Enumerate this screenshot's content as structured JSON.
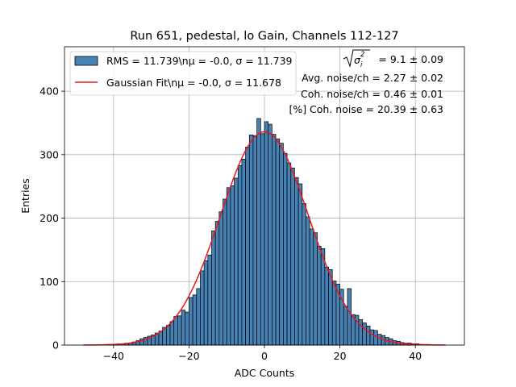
{
  "chart_data": {
    "type": "bar",
    "title": "Run 651, pedestal, lo Gain, Channels 112-127",
    "xlabel": "ADC Counts",
    "ylabel": "Entries",
    "xlim": [
      -53,
      53
    ],
    "ylim": [
      0,
      470
    ],
    "grid": true,
    "xticks": [
      -40,
      -20,
      0,
      20,
      40
    ],
    "yticks": [
      0,
      100,
      200,
      300,
      400
    ],
    "bin_width": 1,
    "histogram": {
      "name": "RMS = 11.739\\nμ = -0.0, σ = 11.739",
      "color": "#4682b4",
      "edge_color": "#000000",
      "bins": [
        [
          -48,
          0
        ],
        [
          -47,
          0
        ],
        [
          -46,
          0
        ],
        [
          -45,
          0
        ],
        [
          -44,
          0
        ],
        [
          -43,
          0
        ],
        [
          -42,
          1
        ],
        [
          -41,
          1
        ],
        [
          -40,
          1
        ],
        [
          -39,
          2
        ],
        [
          -38,
          2
        ],
        [
          -37,
          3
        ],
        [
          -36,
          3
        ],
        [
          -35,
          5
        ],
        [
          -34,
          7
        ],
        [
          -33,
          10
        ],
        [
          -32,
          12
        ],
        [
          -31,
          14
        ],
        [
          -30,
          16
        ],
        [
          -29,
          19
        ],
        [
          -28,
          22
        ],
        [
          -27,
          28
        ],
        [
          -26,
          31
        ],
        [
          -25,
          37
        ],
        [
          -24,
          45
        ],
        [
          -23,
          46
        ],
        [
          -22,
          55
        ],
        [
          -21,
          52
        ],
        [
          -20,
          75
        ],
        [
          -19,
          79
        ],
        [
          -18,
          89
        ],
        [
          -17,
          117
        ],
        [
          -16,
          133
        ],
        [
          -15,
          142
        ],
        [
          -14,
          180
        ],
        [
          -13,
          195
        ],
        [
          -12,
          210
        ],
        [
          -11,
          230
        ],
        [
          -10,
          248
        ],
        [
          -9,
          251
        ],
        [
          -8,
          263
        ],
        [
          -7,
          283
        ],
        [
          -6,
          293
        ],
        [
          -5,
          312
        ],
        [
          -4,
          331
        ],
        [
          -3,
          330
        ],
        [
          -2,
          357
        ],
        [
          -1,
          333
        ],
        [
          0,
          352
        ],
        [
          1,
          348
        ],
        [
          2,
          332
        ],
        [
          3,
          325
        ],
        [
          4,
          318
        ],
        [
          5,
          302
        ],
        [
          6,
          287
        ],
        [
          7,
          279
        ],
        [
          8,
          264
        ],
        [
          9,
          254
        ],
        [
          10,
          223
        ],
        [
          11,
          202
        ],
        [
          12,
          183
        ],
        [
          13,
          177
        ],
        [
          14,
          156
        ],
        [
          15,
          152
        ],
        [
          16,
          123
        ],
        [
          17,
          119
        ],
        [
          18,
          101
        ],
        [
          19,
          96
        ],
        [
          20,
          88
        ],
        [
          21,
          61
        ],
        [
          22,
          89
        ],
        [
          23,
          48
        ],
        [
          24,
          47
        ],
        [
          25,
          40
        ],
        [
          26,
          35
        ],
        [
          27,
          30
        ],
        [
          28,
          24
        ],
        [
          29,
          23
        ],
        [
          30,
          17
        ],
        [
          31,
          15
        ],
        [
          32,
          12
        ],
        [
          33,
          10
        ],
        [
          34,
          7
        ],
        [
          35,
          6
        ],
        [
          36,
          4
        ],
        [
          37,
          3
        ],
        [
          38,
          3
        ],
        [
          39,
          2
        ],
        [
          40,
          2
        ],
        [
          41,
          1
        ],
        [
          42,
          1
        ],
        [
          43,
          1
        ],
        [
          44,
          0
        ],
        [
          45,
          0
        ],
        [
          46,
          0
        ],
        [
          47,
          0
        ]
      ]
    },
    "fit": {
      "name": "Gaussian Fit\\nμ = -0.0, σ = 11.678",
      "color": "#e41a1c",
      "type": "gaussian",
      "amplitude": 336,
      "mu": -0.0,
      "sigma": 11.678,
      "x_range": [
        -48,
        48
      ]
    },
    "legend": {
      "placement": "top-left",
      "entries": [
        {
          "label": "RMS = 11.739\\nμ = -0.0, σ = 11.739",
          "kind": "patch"
        },
        {
          "label": "Gaussian Fit\\nμ = -0.0, σ = 11.678",
          "kind": "line"
        }
      ]
    },
    "annotations": {
      "sigma_sq_sum": "= 9.1 ± 0.09",
      "avg_noise": "Avg. noise/ch = 2.27 ± 0.02",
      "coh_noise": "Coh. noise/ch = 0.46 ± 0.01",
      "pct_coh_noise": "[%] Coh. noise = 20.39 ± 0.63"
    }
  }
}
